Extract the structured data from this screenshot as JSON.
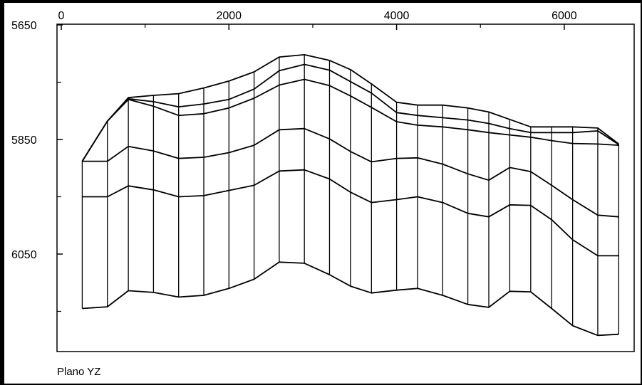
{
  "chart_data": {
    "type": "line",
    "title": "Plano YZ",
    "xlim": [
      0,
      6800
    ],
    "ylim": [
      5650,
      6200
    ],
    "y_inverted": true,
    "x_ticks": [
      0,
      2000,
      4000,
      6000
    ],
    "x_tick_labels": [
      "0",
      "2000",
      "4000",
      "6000"
    ],
    "y_ticks": [
      5650,
      5850,
      6050
    ],
    "y_tick_labels": [
      "5650",
      "5850",
      "6050"
    ],
    "grid": false,
    "legend": false,
    "line_color": "#000000",
    "sections_x": [
      250,
      550,
      800,
      1100,
      1400,
      1700,
      2000,
      2300,
      2600,
      2900,
      3200,
      3450,
      3700,
      4000,
      4250,
      4550,
      4850,
      5100,
      5350,
      5600,
      5850,
      6100,
      6400,
      6650
    ],
    "series": [
      {
        "values": [
          5888,
          5818,
          5777,
          5773,
          5770,
          5760,
          5748,
          5732,
          5706,
          5702,
          5712,
          5728,
          5753,
          5785,
          5790,
          5790,
          5795,
          5802,
          5815,
          5828,
          5828,
          5828,
          5830,
          5858
        ]
      },
      {
        "values": [
          5888,
          5818,
          5779,
          5784,
          5793,
          5788,
          5780,
          5762,
          5730,
          5719,
          5729,
          5749,
          5769,
          5803,
          5808,
          5812,
          5816,
          5822,
          5831,
          5838,
          5838,
          5838,
          5835,
          5859
        ]
      },
      {
        "values": [
          5888,
          5818,
          5780,
          5792,
          5808,
          5805,
          5795,
          5778,
          5755,
          5745,
          5756,
          5774,
          5794,
          5819,
          5825,
          5828,
          5833,
          5838,
          5842,
          5846,
          5852,
          5857,
          5858,
          5860
        ]
      },
      {
        "values": [
          5888,
          5888,
          5862,
          5870,
          5883,
          5881,
          5873,
          5860,
          5833,
          5831,
          5849,
          5871,
          5889,
          5883,
          5882,
          5893,
          5910,
          5921,
          5899,
          5906,
          5930,
          5955,
          5982,
          5985
        ]
      },
      {
        "values": [
          5950,
          5950,
          5931,
          5938,
          5950,
          5948,
          5939,
          5930,
          5905,
          5903,
          5919,
          5942,
          5960,
          5955,
          5950,
          5960,
          5979,
          5985,
          5964,
          5965,
          5990,
          6025,
          6053,
          6053
        ]
      },
      {
        "values": [
          6145,
          6142,
          6114,
          6117,
          6125,
          6122,
          6110,
          6094,
          6064,
          6066,
          6086,
          6106,
          6118,
          6113,
          6110,
          6122,
          6138,
          6143,
          6115,
          6116,
          6145,
          6175,
          6192,
          6190
        ]
      }
    ]
  }
}
